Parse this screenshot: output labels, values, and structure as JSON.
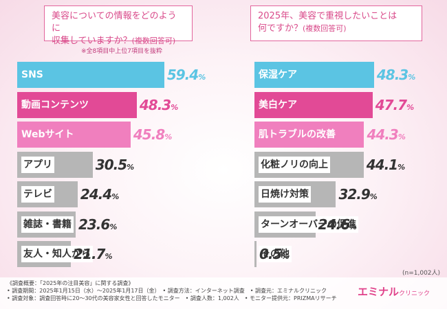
{
  "questions": {
    "left": {
      "line1": "美容についての情報をどのように",
      "line2": "収集していますか？",
      "tag": "(複数回答可)"
    },
    "right": {
      "line1": "2025年、美容で重視したいことは",
      "line2": "何ですか？",
      "tag": "(複数回答可)"
    }
  },
  "note": "※全8項目中上位7項目を抜粋",
  "sample_note": "(n=1,002人)",
  "footer": {
    "line1": "《調査概要：「2025年の注目美容」に関する調査》",
    "line2": "• 調査期間：2025年1月15日（水）〜2025年1月17日（金）　• 調査方法：インターネット調査　• 調査元：エミナルクリニック",
    "line3": "• 調査対象：調査回答時に20〜30代の美容家女性と回答したモニター　• 調査人数：1,002人　• モニター提供元：PRIZMAリサーチ"
  },
  "brand": {
    "name": "エミナル",
    "sub": "クリニック"
  },
  "colors": {
    "first": "#5bc4e3",
    "second": "#e24a96",
    "third": "#f07fbe",
    "rest": "#b6b6b6"
  },
  "chart_data": [
    {
      "type": "bar",
      "orientation": "horizontal",
      "unit": "%",
      "categories": [
        "SNS",
        "動画コンテンツ",
        "Webサイト",
        "アプリ",
        "テレビ",
        "雑誌・書籍",
        "友人・知人から"
      ],
      "values": [
        59.4,
        48.3,
        45.8,
        30.5,
        24.4,
        23.6,
        21.7
      ]
    },
    {
      "type": "bar",
      "orientation": "horizontal",
      "unit": "%",
      "categories": [
        "保湿ケア",
        "美白ケア",
        "肌トラブルの改善",
        "化粧ノリの向上",
        "日焼け対策",
        "ターンオーバーの促進",
        "その他"
      ],
      "values": [
        48.3,
        47.7,
        44.3,
        44.1,
        32.9,
        24.6,
        0.5
      ]
    }
  ]
}
